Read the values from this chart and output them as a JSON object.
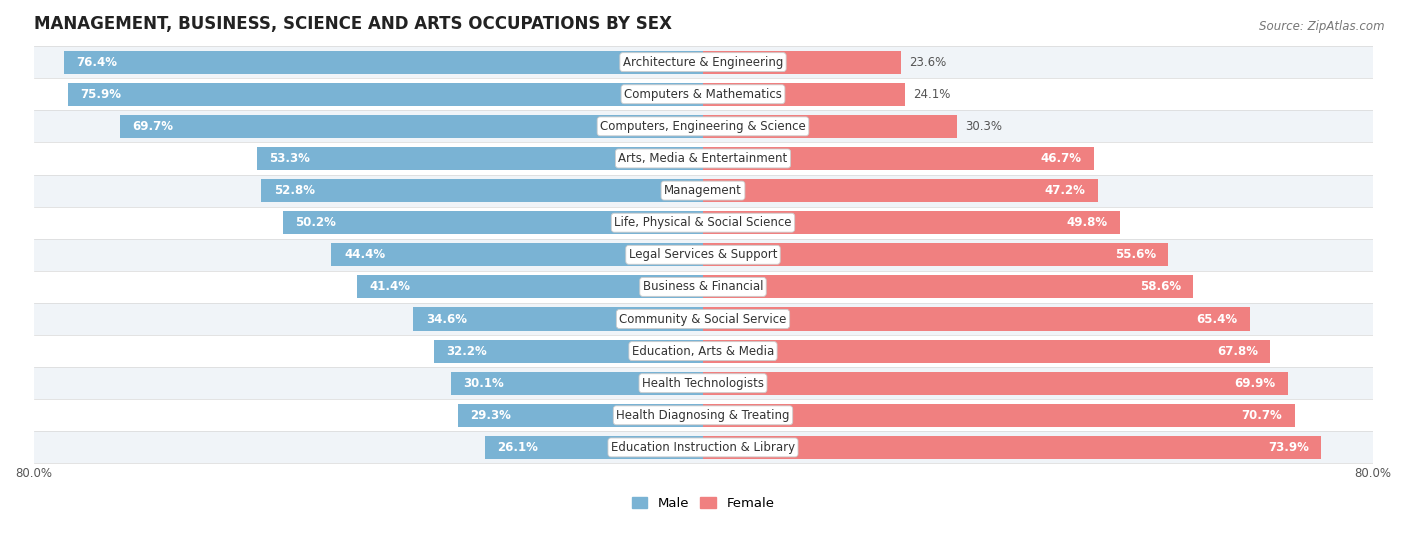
{
  "title": "MANAGEMENT, BUSINESS, SCIENCE AND ARTS OCCUPATIONS BY SEX",
  "source": "Source: ZipAtlas.com",
  "categories": [
    "Architecture & Engineering",
    "Computers & Mathematics",
    "Computers, Engineering & Science",
    "Arts, Media & Entertainment",
    "Management",
    "Life, Physical & Social Science",
    "Legal Services & Support",
    "Business & Financial",
    "Community & Social Service",
    "Education, Arts & Media",
    "Health Technologists",
    "Health Diagnosing & Treating",
    "Education Instruction & Library"
  ],
  "male_pct": [
    76.4,
    75.9,
    69.7,
    53.3,
    52.8,
    50.2,
    44.4,
    41.4,
    34.6,
    32.2,
    30.1,
    29.3,
    26.1
  ],
  "female_pct": [
    23.6,
    24.1,
    30.3,
    46.7,
    47.2,
    49.8,
    55.6,
    58.6,
    65.4,
    67.8,
    69.9,
    70.7,
    73.9
  ],
  "male_color": "#7ab3d4",
  "female_color": "#f08080",
  "row_bg_odd": "#f0f4f8",
  "row_bg_even": "#ffffff",
  "axis_limit": 80.0,
  "bar_height": 0.72,
  "title_fontsize": 12,
  "label_fontsize": 8.5,
  "tick_fontsize": 8.5,
  "category_fontsize": 8.5,
  "legend_fontsize": 9.5
}
